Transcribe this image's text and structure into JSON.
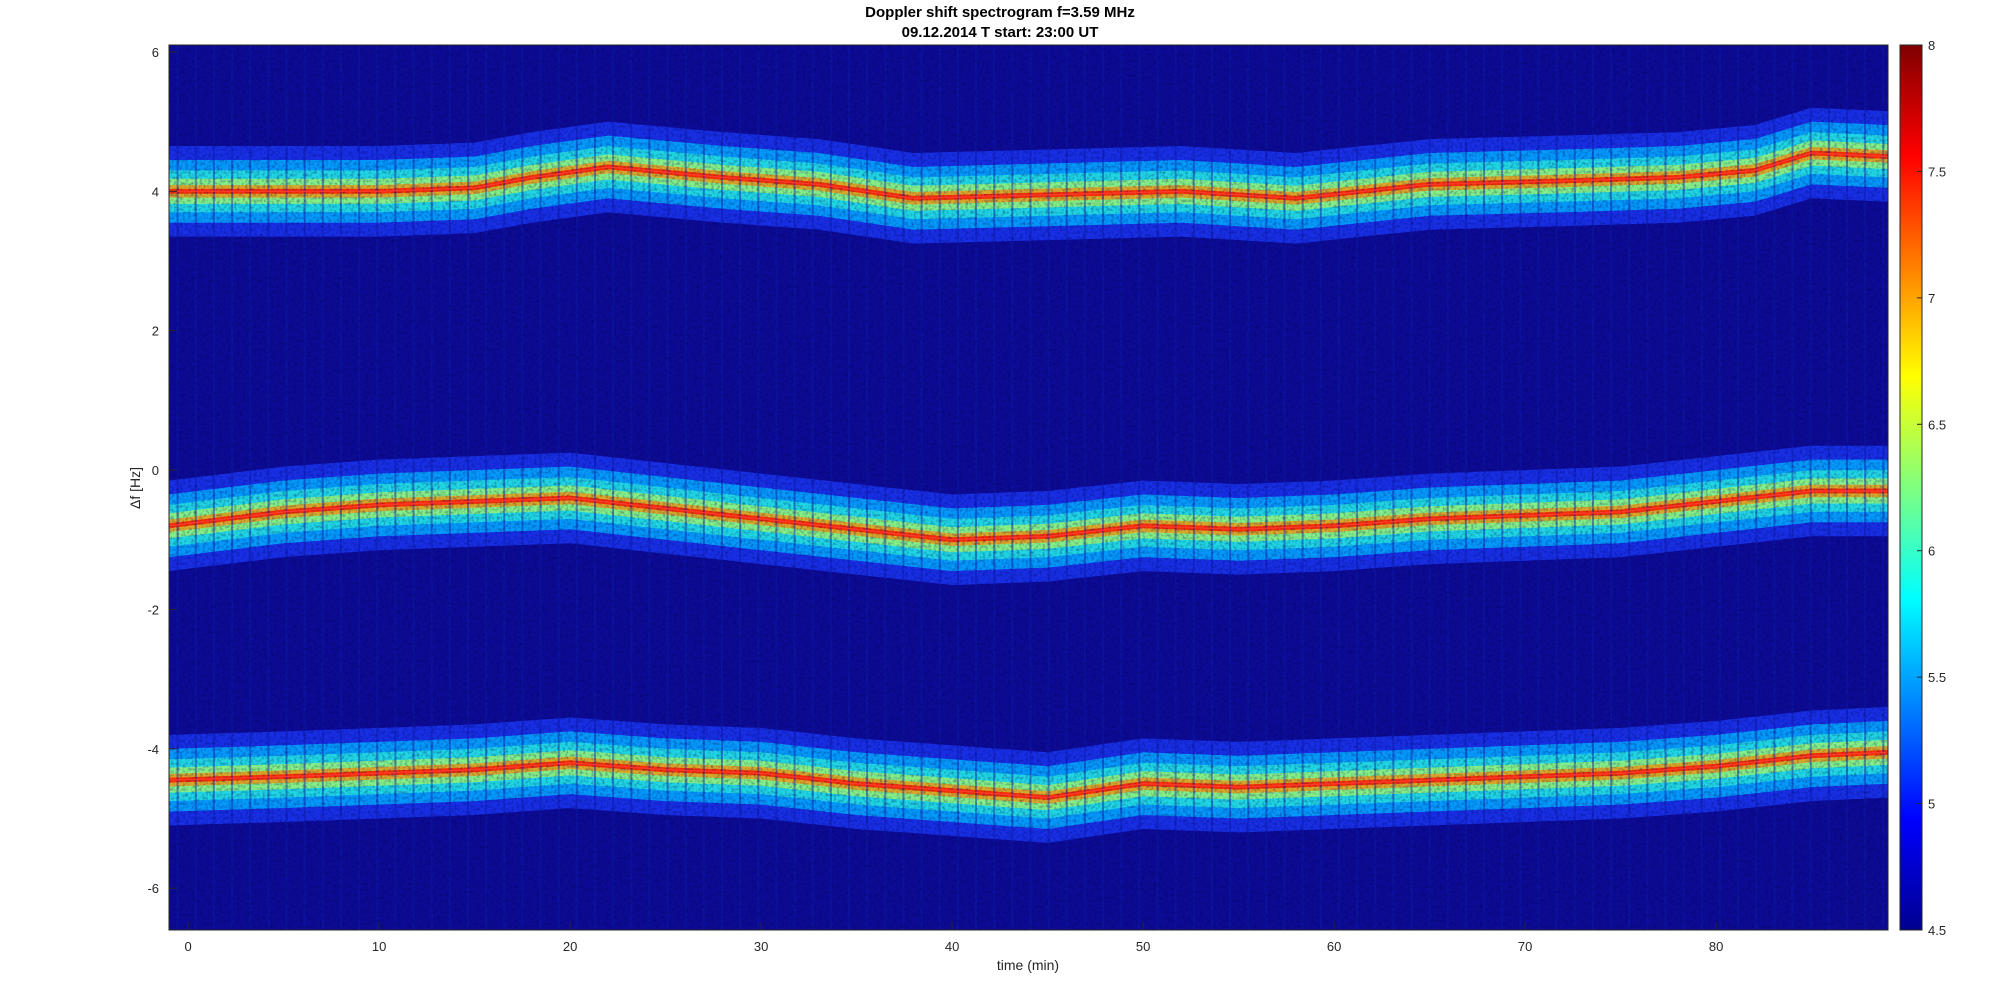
{
  "chart_data": {
    "type": "heatmap",
    "title": "Doppler shift spectrogram f=3.59 MHz",
    "subtitle": "09.12.2014   T start: 23:00 UT",
    "xlabel": "time (min)",
    "ylabel": "Δf [Hz]",
    "xlim": [
      -1,
      89
    ],
    "ylim": [
      -6.6,
      6.1
    ],
    "xticks": [
      0,
      10,
      20,
      30,
      40,
      50,
      60,
      70,
      80
    ],
    "yticks": [
      -6,
      -4,
      -2,
      0,
      2,
      4,
      6
    ],
    "colorbar": {
      "range": [
        4.5,
        8
      ],
      "ticks": [
        4.5,
        5,
        5.5,
        6,
        6.5,
        7,
        7.5,
        8
      ],
      "colormap": "jet"
    },
    "grid": false,
    "traces": [
      {
        "x": [
          -1,
          5,
          10,
          15,
          18,
          22,
          28,
          33,
          38,
          45,
          52,
          58,
          65,
          72,
          78,
          82,
          85,
          89
        ],
        "y": [
          4.0,
          4.0,
          4.0,
          4.05,
          4.2,
          4.35,
          4.2,
          4.1,
          3.9,
          3.95,
          4.0,
          3.9,
          4.1,
          4.15,
          4.2,
          4.3,
          4.55,
          4.5
        ]
      },
      {
        "x": [
          -1,
          5,
          10,
          15,
          20,
          25,
          30,
          35,
          40,
          45,
          50,
          55,
          60,
          65,
          70,
          75,
          80,
          85,
          89
        ],
        "y": [
          -0.8,
          -0.6,
          -0.5,
          -0.45,
          -0.4,
          -0.55,
          -0.7,
          -0.85,
          -1.0,
          -0.95,
          -0.8,
          -0.85,
          -0.8,
          -0.7,
          -0.65,
          -0.6,
          -0.45,
          -0.3,
          -0.3
        ]
      },
      {
        "x": [
          -1,
          5,
          10,
          15,
          20,
          25,
          30,
          35,
          40,
          45,
          50,
          55,
          60,
          65,
          70,
          75,
          80,
          85,
          89
        ],
        "y": [
          -4.45,
          -4.4,
          -4.35,
          -4.3,
          -4.2,
          -4.3,
          -4.35,
          -4.5,
          -4.6,
          -4.7,
          -4.5,
          -4.55,
          -4.5,
          -4.45,
          -4.4,
          -4.35,
          -4.25,
          -4.1,
          -4.05
        ]
      }
    ]
  }
}
